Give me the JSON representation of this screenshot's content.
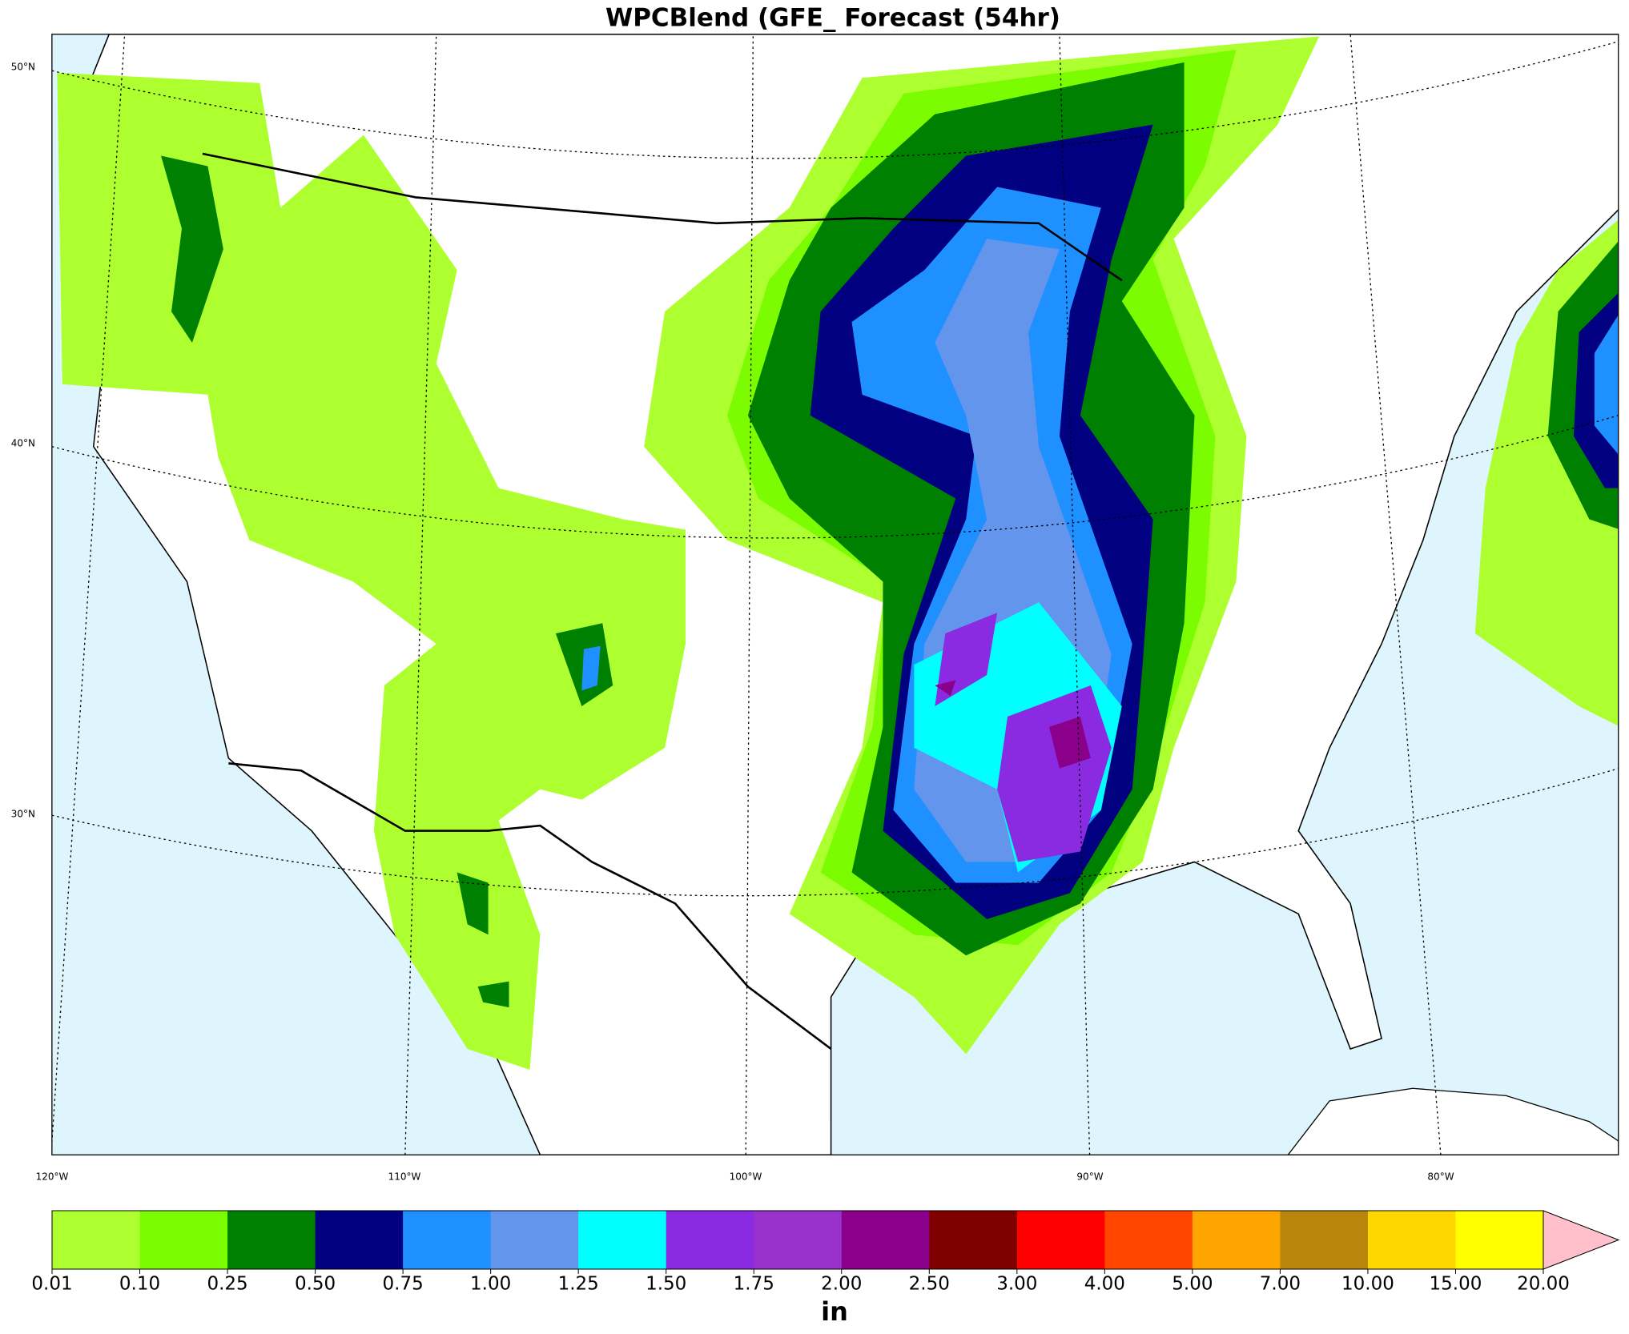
{
  "header": {
    "title": "WPCBlend (GFE_ Forecast (54hr)"
  },
  "map": {
    "lat_labels": [
      "50°N",
      "40°N",
      "30°N"
    ],
    "lon_labels": [
      "120°W",
      "110°W",
      "100°W",
      "90°W",
      "80°W"
    ]
  },
  "colorbar": {
    "ticks": [
      "0.01",
      "0.10",
      "0.25",
      "0.50",
      "0.75",
      "1.00",
      "1.25",
      "1.50",
      "1.75",
      "2.00",
      "2.50",
      "3.00",
      "4.00",
      "5.00",
      "7.00",
      "10.00",
      "15.00",
      "20.00"
    ],
    "colors": [
      "#adff2f",
      "#7cfc00",
      "#008000",
      "#000080",
      "#1e90ff",
      "#6495ed",
      "#00ffff",
      "#8a2be2",
      "#9932cc",
      "#8b008b",
      "#800000",
      "#ff0000",
      "#ff4500",
      "#ffa500",
      "#b8860b",
      "#ffd700",
      "#ffff00"
    ],
    "extend_color": "#ffc0cb",
    "unit": "in"
  }
}
